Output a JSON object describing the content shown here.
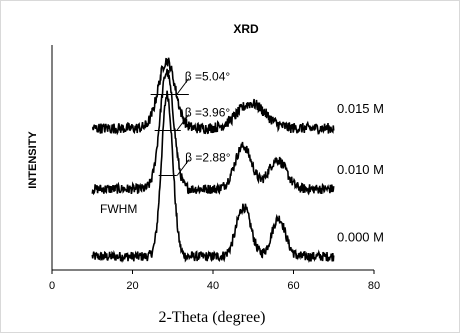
{
  "chart_data": {
    "type": "line",
    "title": "XRD",
    "xlabel": "2-Theta (degree)",
    "ylabel": "INTENSITY",
    "xlim": [
      0,
      80
    ],
    "xticks": [
      0,
      20,
      40,
      60,
      80
    ],
    "ylim": [
      0,
      10
    ],
    "grid": false,
    "x_range": [
      10,
      70
    ],
    "fwhm_label": "FWHM",
    "series": [
      {
        "name": "0.000 M",
        "offset": 0.6,
        "peaks": [
          [
            28.6,
            7.2,
            1.4
          ],
          [
            47.6,
            2.2,
            1.8
          ],
          [
            56.3,
            1.7,
            1.7
          ]
        ],
        "noise": 0.22,
        "beta_label": "β =2.88°",
        "fwhm_x": [
          26.5,
          31.0
        ]
      },
      {
        "name": "0.010 M",
        "offset": 3.6,
        "peaks": [
          [
            28.5,
            5.2,
            1.7
          ],
          [
            47.5,
            1.9,
            2.1
          ],
          [
            56.0,
            1.3,
            2.2
          ]
        ],
        "noise": 0.22,
        "beta_label": "β =3.96°",
        "fwhm_x": [
          25.5,
          32.0
        ]
      },
      {
        "name": "0.015 M",
        "offset": 6.3,
        "peaks": [
          [
            28.5,
            3.0,
            2.1
          ],
          [
            49.5,
            1.1,
            3.5
          ]
        ],
        "noise": 0.24,
        "beta_label": "β =5.04°",
        "fwhm_x": [
          24.5,
          34.0
        ]
      }
    ]
  }
}
